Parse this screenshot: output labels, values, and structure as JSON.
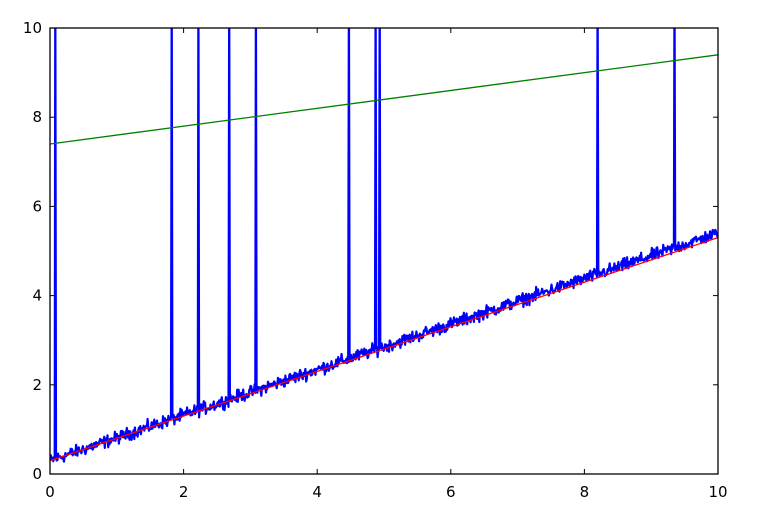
{
  "chart_data": {
    "type": "line",
    "title": "",
    "xlabel": "",
    "ylabel": "",
    "xlim": [
      0,
      10
    ],
    "ylim": [
      0,
      10
    ],
    "xticks": [
      "0",
      "2",
      "4",
      "6",
      "8",
      "10"
    ],
    "yticks": [
      "0",
      "2",
      "4",
      "6",
      "8",
      "10"
    ],
    "grid": false,
    "legend": "none",
    "series": [
      {
        "style": "noisy-data",
        "color": "#0000ff",
        "x_start": 0,
        "x_end": 10,
        "y_start": 0.3,
        "y_end": 5.4,
        "noise": 0.1,
        "spikes_to_top_at_x": [
          0.08,
          1.82,
          2.22,
          2.68,
          3.08,
          4.47,
          4.87,
          4.93,
          8.2,
          9.35
        ]
      },
      {
        "style": "fit-line",
        "color": "#ff0000",
        "x": [
          0,
          10
        ],
        "y": [
          0.3,
          5.3
        ]
      },
      {
        "style": "line",
        "color": "#008000",
        "x": [
          0,
          10
        ],
        "y": [
          7.4,
          9.4
        ]
      }
    ]
  }
}
